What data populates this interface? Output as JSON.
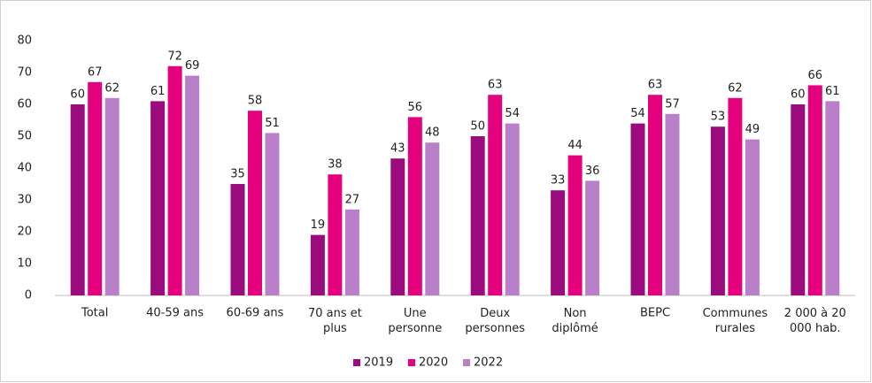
{
  "chart_data": {
    "type": "bar",
    "categories": [
      "Total",
      "40-59 ans",
      "60-69 ans",
      "70 ans et\nplus",
      "Une\npersonne",
      "Deux\npersonnes",
      "Non\ndiplômé",
      "BEPC",
      "Communes\nrurales",
      "2 000 à 20\n000 hab."
    ],
    "series": [
      {
        "name": "2019",
        "color": "#9b0b7d",
        "values": [
          60,
          61,
          35,
          19,
          43,
          50,
          33,
          54,
          53,
          60
        ]
      },
      {
        "name": "2020",
        "color": "#e5007e",
        "values": [
          67,
          72,
          58,
          38,
          56,
          63,
          44,
          63,
          62,
          66
        ]
      },
      {
        "name": "2022",
        "color": "#b97fc9",
        "values": [
          62,
          69,
          51,
          27,
          48,
          54,
          36,
          57,
          49,
          61
        ]
      }
    ],
    "ylim": [
      0,
      80
    ],
    "yticks": [
      0,
      10,
      20,
      30,
      40,
      50,
      60,
      70,
      80
    ],
    "grid": false,
    "legend": "bottom"
  }
}
